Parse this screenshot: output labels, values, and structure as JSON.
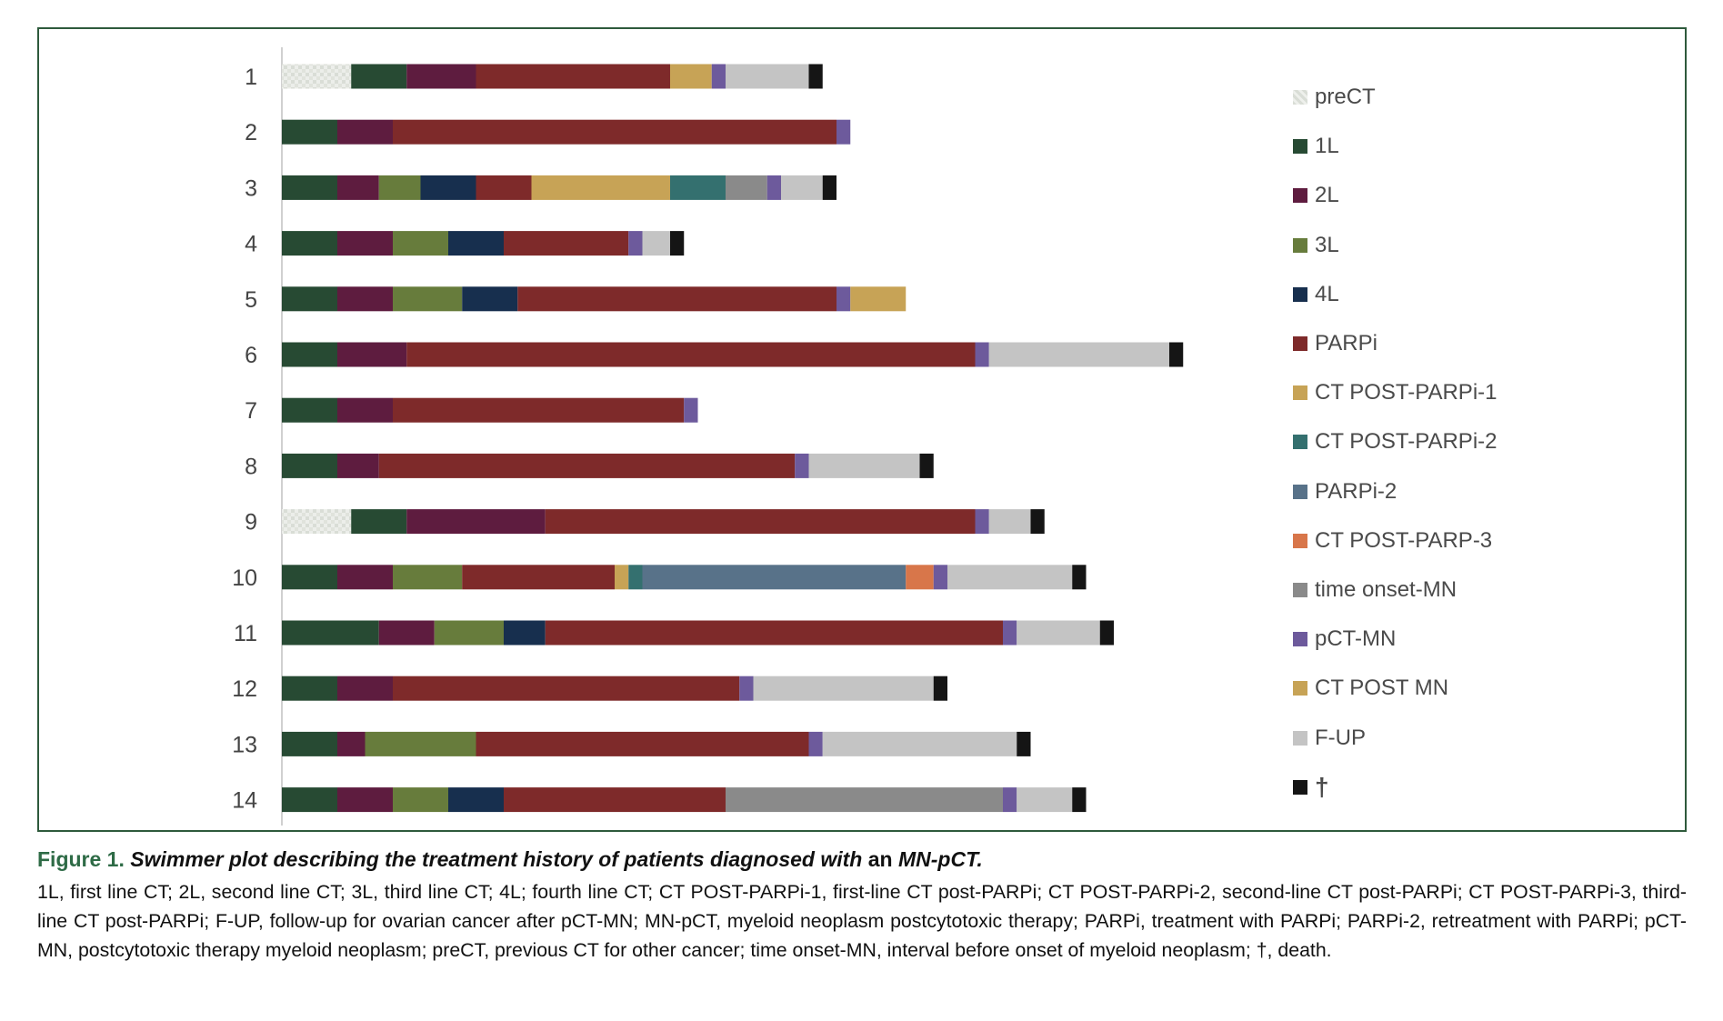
{
  "chart_data": {
    "type": "bar",
    "orientation": "horizontal-stacked",
    "categories": [
      "1",
      "2",
      "3",
      "4",
      "5",
      "6",
      "7",
      "8",
      "9",
      "10",
      "11",
      "12",
      "13",
      "14"
    ],
    "phases": [
      "preCT",
      "1L",
      "2L",
      "3L",
      "4L",
      "PARPi",
      "CT POST-PARPi-1",
      "CT POST-PARPi-2",
      "PARPi-2",
      "CT POST-PARP-3",
      "time onset-MN",
      "pCT-MN",
      "CT POST MN",
      "F-UP",
      "†"
    ],
    "colors": {
      "preCT": "#e4e7e2",
      "1L": "#274a33",
      "2L": "#5e1c3f",
      "3L": "#677c3c",
      "4L": "#172f4e",
      "PARPi": "#7e2a2a",
      "CT POST-PARPi-1": "#c7a356",
      "CT POST-PARPi-2": "#34706f",
      "PARPi-2": "#587289",
      "CT POST-PARP-3": "#d8764a",
      "time onset-MN": "#8a8a8a",
      "pCT-MN": "#6d5a9c",
      "CT POST MN": "#c7a356",
      "F-UP": "#c4c4c4",
      "†": "#151515"
    },
    "patients": [
      {
        "id": "1",
        "segments": [
          [
            "preCT",
            5
          ],
          [
            "1L",
            4
          ],
          [
            "2L",
            5
          ],
          [
            "PARPi",
            14
          ],
          [
            "CT POST-PARPi-1",
            3
          ],
          [
            "pCT-MN",
            1
          ],
          [
            "F-UP",
            6
          ],
          [
            "†",
            1
          ]
        ]
      },
      {
        "id": "2",
        "segments": [
          [
            "1L",
            4
          ],
          [
            "2L",
            4
          ],
          [
            "PARPi",
            32
          ],
          [
            "pCT-MN",
            1
          ]
        ]
      },
      {
        "id": "3",
        "segments": [
          [
            "1L",
            4
          ],
          [
            "2L",
            3
          ],
          [
            "3L",
            3
          ],
          [
            "4L",
            4
          ],
          [
            "PARPi",
            4
          ],
          [
            "CT POST-PARPi-1",
            10
          ],
          [
            "CT POST-PARPi-2",
            4
          ],
          [
            "time onset-MN",
            3
          ],
          [
            "pCT-MN",
            1
          ],
          [
            "F-UP",
            3
          ],
          [
            "†",
            1
          ]
        ]
      },
      {
        "id": "4",
        "segments": [
          [
            "1L",
            4
          ],
          [
            "2L",
            4
          ],
          [
            "3L",
            4
          ],
          [
            "4L",
            4
          ],
          [
            "PARPi",
            9
          ],
          [
            "pCT-MN",
            1
          ],
          [
            "F-UP",
            2
          ],
          [
            "†",
            1
          ]
        ]
      },
      {
        "id": "5",
        "segments": [
          [
            "1L",
            4
          ],
          [
            "2L",
            4
          ],
          [
            "3L",
            5
          ],
          [
            "4L",
            4
          ],
          [
            "PARPi",
            23
          ],
          [
            "pCT-MN",
            1
          ],
          [
            "CT POST MN",
            4
          ]
        ]
      },
      {
        "id": "6",
        "segments": [
          [
            "1L",
            4
          ],
          [
            "2L",
            5
          ],
          [
            "PARPi",
            41
          ],
          [
            "pCT-MN",
            1
          ],
          [
            "F-UP",
            13
          ],
          [
            "†",
            1
          ]
        ]
      },
      {
        "id": "7",
        "segments": [
          [
            "1L",
            4
          ],
          [
            "2L",
            4
          ],
          [
            "PARPi",
            21
          ],
          [
            "pCT-MN",
            1
          ]
        ]
      },
      {
        "id": "8",
        "segments": [
          [
            "1L",
            4
          ],
          [
            "2L",
            3
          ],
          [
            "PARPi",
            30
          ],
          [
            "pCT-MN",
            1
          ],
          [
            "F-UP",
            8
          ],
          [
            "†",
            1
          ]
        ]
      },
      {
        "id": "9",
        "segments": [
          [
            "preCT",
            5
          ],
          [
            "1L",
            4
          ],
          [
            "2L",
            10
          ],
          [
            "PARPi",
            31
          ],
          [
            "pCT-MN",
            1
          ],
          [
            "F-UP",
            3
          ],
          [
            "†",
            1
          ]
        ]
      },
      {
        "id": "10",
        "segments": [
          [
            "1L",
            4
          ],
          [
            "2L",
            4
          ],
          [
            "3L",
            5
          ],
          [
            "PARPi",
            11
          ],
          [
            "CT POST-PARPi-1",
            1
          ],
          [
            "CT POST-PARPi-2",
            1
          ],
          [
            "PARPi-2",
            19
          ],
          [
            "CT POST-PARP-3",
            2
          ],
          [
            "pCT-MN",
            1
          ],
          [
            "F-UP",
            9
          ],
          [
            "†",
            1
          ]
        ]
      },
      {
        "id": "11",
        "segments": [
          [
            "1L",
            7
          ],
          [
            "2L",
            4
          ],
          [
            "3L",
            5
          ],
          [
            "4L",
            3
          ],
          [
            "PARPi",
            33
          ],
          [
            "pCT-MN",
            1
          ],
          [
            "F-UP",
            6
          ],
          [
            "†",
            1
          ]
        ]
      },
      {
        "id": "12",
        "segments": [
          [
            "1L",
            4
          ],
          [
            "2L",
            4
          ],
          [
            "PARPi",
            25
          ],
          [
            "pCT-MN",
            1
          ],
          [
            "F-UP",
            13
          ],
          [
            "†",
            1
          ]
        ]
      },
      {
        "id": "13",
        "segments": [
          [
            "1L",
            4
          ],
          [
            "2L",
            2
          ],
          [
            "3L",
            8
          ],
          [
            "PARPi",
            24
          ],
          [
            "pCT-MN",
            1
          ],
          [
            "F-UP",
            14
          ],
          [
            "†",
            1
          ]
        ]
      },
      {
        "id": "14",
        "segments": [
          [
            "1L",
            4
          ],
          [
            "2L",
            4
          ],
          [
            "3L",
            4
          ],
          [
            "4L",
            4
          ],
          [
            "PARPi",
            16
          ],
          [
            "time onset-MN",
            20
          ],
          [
            "pCT-MN",
            1
          ],
          [
            "F-UP",
            4
          ],
          [
            "†",
            1
          ]
        ]
      }
    ],
    "legend": [
      "preCT",
      "1L",
      "2L",
      "3L",
      "4L",
      "PARPi",
      "CT POST-PARPi-1",
      "CT POST-PARPi-2",
      "PARPi-2",
      "CT POST-PARP-3",
      "time onset-MN",
      "pCT-MN",
      "CT POST MN",
      "F-UP",
      "†"
    ],
    "legend_position": "right",
    "grid": false
  },
  "legend_colors": [
    "#e4e7e2",
    "#274a33",
    "#5e1c3f",
    "#677c3c",
    "#172f4e",
    "#7e2a2a",
    "#c7a356",
    "#34706f",
    "#587289",
    "#d8764a",
    "#8a8a8a",
    "#6d5a9c",
    "#c7a356",
    "#c4c4c4",
    "#151515"
  ],
  "caption": {
    "figure_label": "Figure 1.",
    "title_italic": "Swimmer plot describing the treatment history of patients diagnosed with",
    "title_middle": "an",
    "title_end": "MN-pCT.",
    "body": "1L, first line CT; 2L, second line CT; 3L, third line CT; 4L; fourth line CT; CT POST-PARPi-1, first-line CT post-PARPi; CT POST-PARPi-2, second-line CT post-PARPi; CT POST-PARPi-3, third-line CT post-PARPi; F-UP, follow-up for ovarian cancer after pCT-MN; MN-pCT, myeloid neoplasm postcytotoxic therapy; PARPi, treatment with PARPi; PARPi-2, retreatment with PARPi; pCT-MN, postcytotoxic therapy myeloid neoplasm; preCT, previous CT for other cancer; time onset-MN, interval before onset of myeloid neoplasm; †, death."
  }
}
